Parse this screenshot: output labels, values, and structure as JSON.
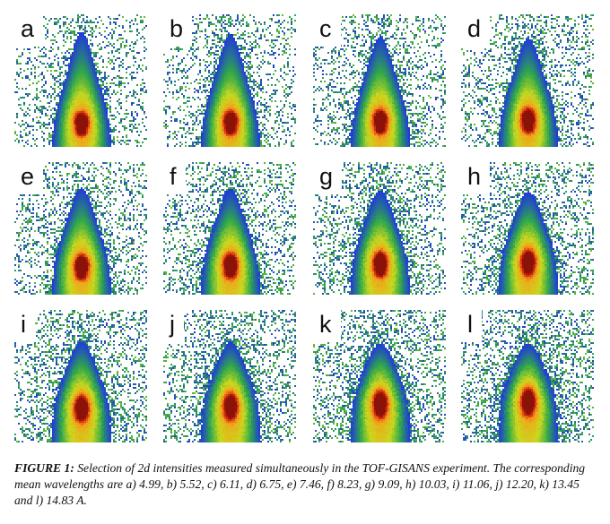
{
  "figure": {
    "panels": [
      {
        "label": "a",
        "wavelength": 4.99
      },
      {
        "label": "b",
        "wavelength": 5.52
      },
      {
        "label": "c",
        "wavelength": 6.11
      },
      {
        "label": "d",
        "wavelength": 6.75
      },
      {
        "label": "e",
        "wavelength": 7.46
      },
      {
        "label": "f",
        "wavelength": 8.23
      },
      {
        "label": "g",
        "wavelength": 9.09
      },
      {
        "label": "h",
        "wavelength": 10.03
      },
      {
        "label": "i",
        "wavelength": 11.06
      },
      {
        "label": "j",
        "wavelength": 12.2
      },
      {
        "label": "k",
        "wavelength": 13.45
      },
      {
        "label": "l",
        "wavelength": 14.83
      }
    ],
    "colormap": [
      "#1f3bd8",
      "#2fa84a",
      "#c8d91e",
      "#f2a11a",
      "#e03410",
      "#8a1208"
    ]
  },
  "caption": {
    "lead": "FIGURE 1:",
    "text": " Selection of 2d intensities measured simultaneously in the TOF-GISANS experiment. The corresponding mean wavelengths are a) 4.99, b) 5.52, c) 6.11, d) 6.75, e) 7.46, f) 8.23, g) 9.09, h) 10.03, i) 11.06, j) 12.20, k) 13.45 and l) 14.83 A."
  }
}
